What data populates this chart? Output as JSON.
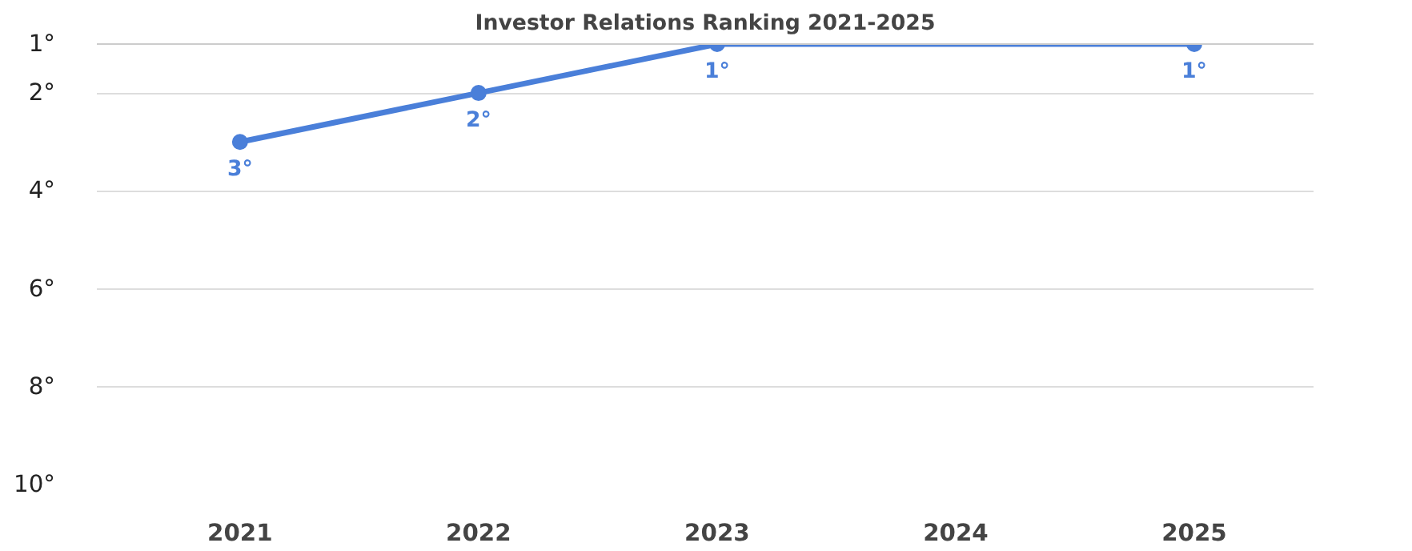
{
  "chart_data": {
    "type": "line",
    "title": "Investor Relations Ranking 2021-2025",
    "categories": [
      "2021",
      "2022",
      "2023",
      "2024",
      "2025"
    ],
    "series": [
      {
        "color": "#4a7fd9",
        "values": [
          3,
          2,
          1,
          null,
          1
        ],
        "value_labels": [
          "3°",
          "2°",
          "1°",
          null,
          "1°"
        ]
      }
    ],
    "ylim": [
      10,
      1
    ],
    "yticks": [
      {
        "value": 1,
        "label": "1°"
      },
      {
        "value": 2,
        "label": "2°"
      },
      {
        "value": 4,
        "label": "4°"
      },
      {
        "value": 6,
        "label": "6°"
      },
      {
        "value": 8,
        "label": "8°"
      },
      {
        "value": 10,
        "label": "10°"
      }
    ],
    "grid": "y",
    "marker": "circle",
    "line_style": "solid"
  }
}
